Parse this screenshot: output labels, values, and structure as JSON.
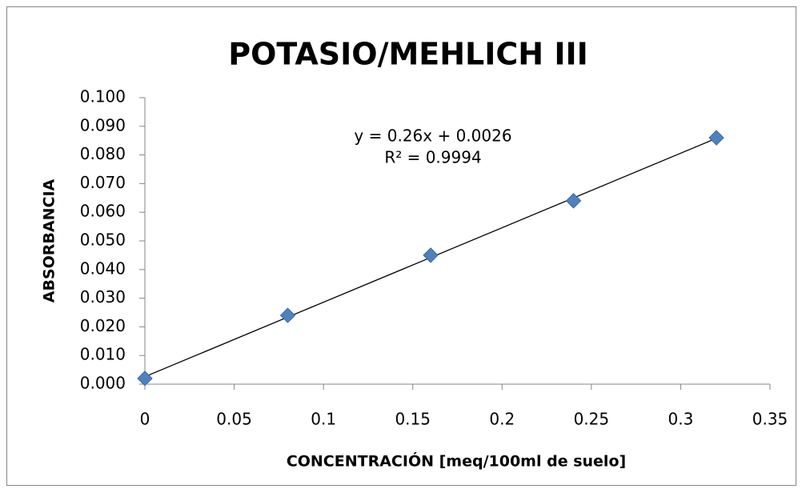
{
  "chart_data": {
    "type": "scatter",
    "title": "POTASIO/MEHLICH III",
    "x_label": "CONCENTRACIÓN [meq/100ml de suelo]",
    "y_label": "ABSORBANCIA",
    "series": [
      {
        "color": "#4f81bd",
        "x": [
          0,
          0.08,
          0.16,
          0.24,
          0.32
        ],
        "values": [
          0.002,
          0.024,
          0.045,
          0.064,
          0.086
        ]
      }
    ],
    "trendline": {
      "slope": 0.26,
      "intercept": 0.0026,
      "color": "#000000",
      "equation": "y = 0.26x + 0.0026",
      "r2": "R² = 0.9994"
    },
    "xlim": [
      0,
      0.35
    ],
    "xticks": [
      0,
      0.05,
      0.1,
      0.15,
      0.2,
      0.25,
      0.3,
      0.35
    ],
    "ylim": [
      0,
      0.1
    ],
    "yticks": [
      {
        "value": 0,
        "label": "0.000"
      },
      {
        "value": 0.01,
        "label": "0.010"
      },
      {
        "value": 0.02,
        "label": "0.020"
      },
      {
        "value": 0.03,
        "label": "0.030"
      },
      {
        "value": 0.04,
        "label": "0.040"
      },
      {
        "value": 0.05,
        "label": "0.050"
      },
      {
        "value": 0.06,
        "label": "0.060"
      },
      {
        "value": 0.07,
        "label": "0.070"
      },
      {
        "value": 0.08,
        "label": "0.080"
      },
      {
        "value": 0.09,
        "label": "0.090"
      },
      {
        "value": 0.1,
        "label": "0.100"
      }
    ],
    "grid": false
  }
}
